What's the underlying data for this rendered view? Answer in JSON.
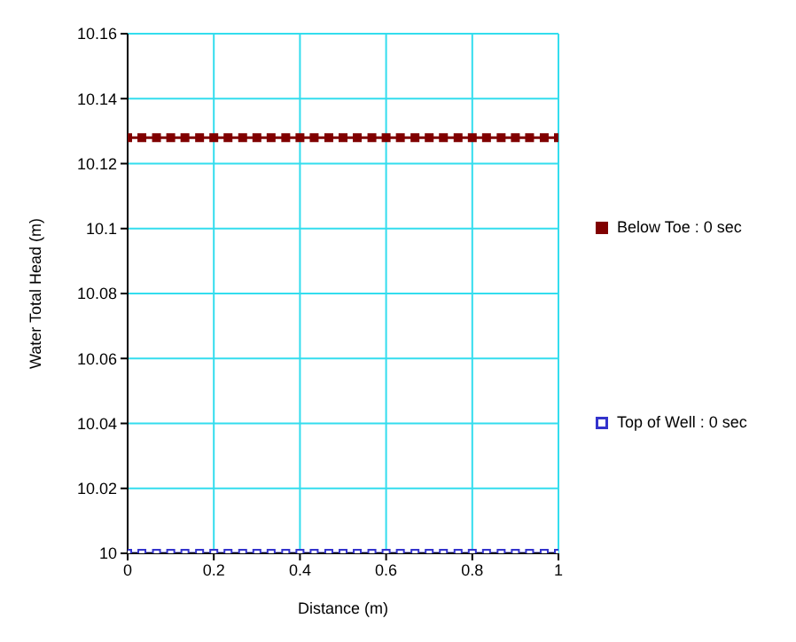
{
  "chart_data": {
    "type": "line",
    "xlabel": "Distance (m)",
    "ylabel": "Water Total Head (m)",
    "x": [
      0,
      0.033,
      0.067,
      0.1,
      0.133,
      0.167,
      0.2,
      0.233,
      0.267,
      0.3,
      0.333,
      0.367,
      0.4,
      0.433,
      0.467,
      0.5,
      0.533,
      0.567,
      0.6,
      0.633,
      0.667,
      0.7,
      0.733,
      0.767,
      0.8,
      0.833,
      0.867,
      0.9,
      0.933,
      0.967,
      1
    ],
    "series": [
      {
        "name": "Below Toe : 0 sec",
        "color": "#800000",
        "values": [
          10.128,
          10.128,
          10.128,
          10.128,
          10.128,
          10.128,
          10.128,
          10.128,
          10.128,
          10.128,
          10.128,
          10.128,
          10.128,
          10.128,
          10.128,
          10.128,
          10.128,
          10.128,
          10.128,
          10.128,
          10.128,
          10.128,
          10.128,
          10.128,
          10.128,
          10.128,
          10.128,
          10.128,
          10.128,
          10.128,
          10.128
        ]
      },
      {
        "name": "Top of Well : 0 sec",
        "color": "#3333cc",
        "values": [
          10,
          10,
          10,
          10,
          10,
          10,
          10,
          10,
          10,
          10,
          10,
          10,
          10,
          10,
          10,
          10,
          10,
          10,
          10,
          10,
          10,
          10,
          10,
          10,
          10,
          10,
          10,
          10,
          10,
          10,
          10
        ]
      }
    ],
    "xlim": [
      0,
      1
    ],
    "xticks": [
      0,
      0.2,
      0.4,
      0.6,
      0.8,
      1
    ],
    "ylim": [
      10,
      10.16
    ],
    "yticks": [
      10,
      10.02,
      10.04,
      10.06,
      10.08,
      10.1,
      10.12,
      10.14,
      10.16
    ],
    "grid": true,
    "legend": "right",
    "marker": "square",
    "line_style": "solid"
  }
}
